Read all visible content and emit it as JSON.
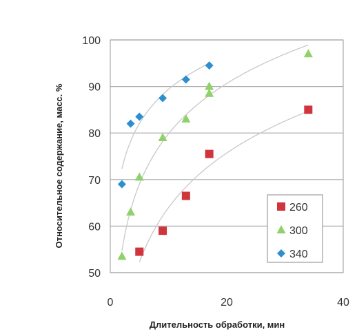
{
  "chart_data": {
    "type": "scatter",
    "title": "",
    "xlabel": "Длительность обработки, мин",
    "ylabel": "Относительное содержание, масс. %",
    "xlim": [
      0,
      40
    ],
    "ylim": [
      50,
      100
    ],
    "xticks": [
      0,
      20,
      40
    ],
    "yticks": [
      50,
      60,
      70,
      80,
      90,
      100
    ],
    "grid": "horizontal",
    "legend_position": "bottom-right",
    "series": [
      {
        "name": "260",
        "color": "#d0343c",
        "marker": "square",
        "x": [
          5,
          9,
          13,
          17,
          34
        ],
        "y": [
          54.5,
          59,
          66.5,
          75.5,
          85
        ]
      },
      {
        "name": "300",
        "color": "#8fd16a",
        "marker": "triangle",
        "x": [
          2,
          3.5,
          5,
          9,
          13,
          17,
          17,
          34
        ],
        "y": [
          53.5,
          63,
          70.5,
          79,
          83,
          88.5,
          90,
          97
        ]
      },
      {
        "name": "340",
        "color": "#2e8fd0",
        "marker": "diamond",
        "x": [
          2,
          3.5,
          5,
          9,
          13,
          17
        ],
        "y": [
          69,
          82,
          83.5,
          87.5,
          91.5,
          94.5
        ]
      }
    ]
  }
}
